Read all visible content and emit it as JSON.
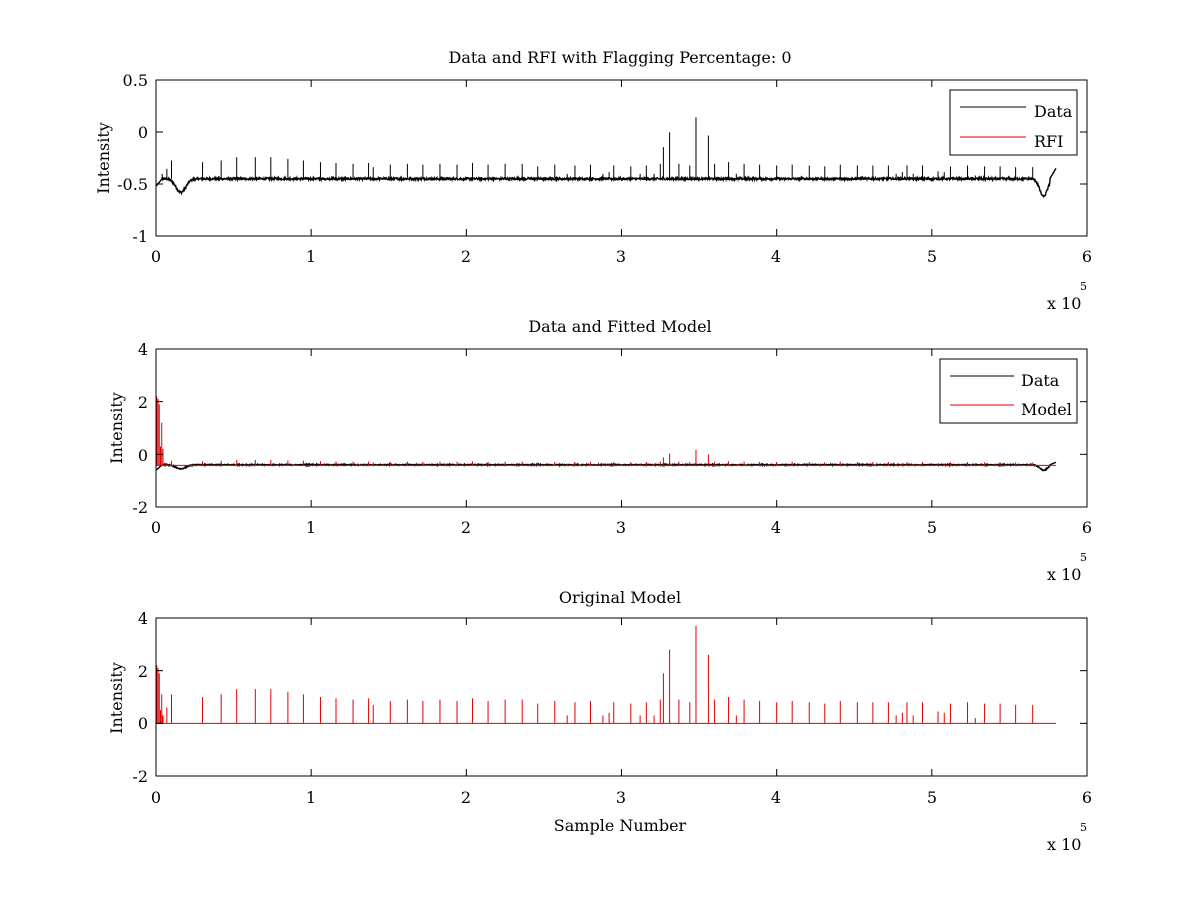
{
  "colors": {
    "data": "#000000",
    "model": "#e00000",
    "axes": "#000000",
    "background": "#ffffff"
  },
  "chart_data": [
    {
      "type": "line",
      "title": "Data and RFI with Flagging Percentage: 0",
      "xlabel": "",
      "ylabel": "Intensity",
      "xlim": [
        0,
        600000
      ],
      "ylim": [
        -1,
        0.5
      ],
      "x_ticks": [
        "0",
        "1",
        "2",
        "3",
        "4",
        "5",
        "6"
      ],
      "y_ticks": [
        "0.5",
        "0",
        "-0.5",
        "-1"
      ],
      "x_exponent": {
        "base": "x 10",
        "power": "5"
      },
      "legend": {
        "position": "top-right",
        "entries": [
          {
            "name": "Data",
            "color": "#000000"
          },
          {
            "name": "RFI",
            "color": "#e00000"
          }
        ]
      },
      "series": [
        {
          "name": "Data",
          "color": "#000000",
          "kind": "data",
          "baseline": -0.45,
          "noise": 0.01,
          "dips": [
            {
              "x": 16000,
              "depth": 0.13,
              "width": 4500
            },
            {
              "x": 572000,
              "depth": 0.17,
              "width": 3500
            }
          ],
          "spike_scale": 0.16,
          "start": -0.52,
          "end": -0.45
        },
        {
          "name": "RFI",
          "color": "#e00000",
          "kind": "none"
        }
      ]
    },
    {
      "type": "line",
      "title": "Data and Fitted Model",
      "xlabel": "",
      "ylabel": "Intensity",
      "xlim": [
        0,
        600000
      ],
      "ylim": [
        -2,
        4
      ],
      "x_ticks": [
        "0",
        "1",
        "2",
        "3",
        "4",
        "5",
        "6"
      ],
      "y_ticks": [
        "4",
        "2",
        "0",
        "-2"
      ],
      "x_exponent": {
        "base": "x 10",
        "power": "5"
      },
      "legend": {
        "position": "top-right",
        "entries": [
          {
            "name": "Data",
            "color": "#000000"
          },
          {
            "name": "Model",
            "color": "#e00000"
          }
        ]
      },
      "series": [
        {
          "name": "Data",
          "color": "#000000",
          "kind": "data",
          "baseline": -0.4,
          "noise": 0.02,
          "dips": [
            {
              "x": 16000,
              "depth": 0.15,
              "width": 4500
            },
            {
              "x": 572000,
              "depth": 0.2,
              "width": 3500
            }
          ],
          "spike_scale": 0.0,
          "start": -0.6,
          "end": -0.4
        },
        {
          "name": "Model",
          "color": "#e00000",
          "kind": "model",
          "baseline": -0.42,
          "spike_scale": 0.16,
          "head": [
            2.2,
            2.1,
            1.9,
            0.3,
            1.2,
            0.2
          ]
        }
      ]
    },
    {
      "type": "line",
      "title": "Original Model",
      "xlabel": "Sample Number",
      "ylabel": "Intensity",
      "xlim": [
        0,
        600000
      ],
      "ylim": [
        -2,
        4
      ],
      "x_ticks": [
        "0",
        "1",
        "2",
        "3",
        "4",
        "5",
        "6"
      ],
      "y_ticks": [
        "4",
        "2",
        "0",
        "-2"
      ],
      "x_exponent": {
        "base": "x 10",
        "power": "5"
      },
      "legend": null,
      "series": [
        {
          "name": "Model",
          "color": "#e00000",
          "kind": "model",
          "baseline": 0.0,
          "spike_scale": 1.0,
          "head": [
            2.2,
            2.1,
            1.9,
            0.5,
            1.1,
            0.3
          ]
        }
      ]
    }
  ],
  "spikes": [
    [
      4000,
      0.3
    ],
    [
      7000,
      0.6
    ],
    [
      10000,
      1.1
    ],
    [
      30000,
      1.0
    ],
    [
      42000,
      1.1
    ],
    [
      52000,
      1.3
    ],
    [
      64000,
      1.3
    ],
    [
      74000,
      1.3
    ],
    [
      85000,
      1.2
    ],
    [
      95000,
      1.1
    ],
    [
      106000,
      1.0
    ],
    [
      116000,
      0.95
    ],
    [
      127000,
      0.9
    ],
    [
      137000,
      0.95
    ],
    [
      140000,
      0.7
    ],
    [
      151000,
      0.85
    ],
    [
      162000,
      0.9
    ],
    [
      172000,
      0.85
    ],
    [
      183000,
      0.9
    ],
    [
      194000,
      0.85
    ],
    [
      204000,
      0.95
    ],
    [
      214000,
      0.85
    ],
    [
      225000,
      0.9
    ],
    [
      236000,
      0.9
    ],
    [
      246000,
      0.75
    ],
    [
      257000,
      0.85
    ],
    [
      265000,
      0.3
    ],
    [
      270000,
      0.8
    ],
    [
      280000,
      0.85
    ],
    [
      288000,
      0.3
    ],
    [
      292000,
      0.4
    ],
    [
      295000,
      0.8
    ],
    [
      306000,
      0.75
    ],
    [
      312000,
      0.3
    ],
    [
      316000,
      0.8
    ],
    [
      321000,
      0.3
    ],
    [
      325000,
      0.9
    ],
    [
      327000,
      1.9
    ],
    [
      331000,
      2.8
    ],
    [
      337000,
      0.9
    ],
    [
      344000,
      0.8
    ],
    [
      348000,
      3.7
    ],
    [
      356000,
      2.6
    ],
    [
      360000,
      0.9
    ],
    [
      369000,
      1.0
    ],
    [
      374000,
      0.3
    ],
    [
      379000,
      0.9
    ],
    [
      389000,
      0.85
    ],
    [
      400000,
      0.8
    ],
    [
      410000,
      0.85
    ],
    [
      421000,
      0.8
    ],
    [
      431000,
      0.75
    ],
    [
      441000,
      0.85
    ],
    [
      452000,
      0.8
    ],
    [
      462000,
      0.8
    ],
    [
      472000,
      0.8
    ],
    [
      477000,
      0.3
    ],
    [
      481000,
      0.4
    ],
    [
      484000,
      0.8
    ],
    [
      488000,
      0.3
    ],
    [
      494000,
      0.8
    ],
    [
      504000,
      0.45
    ],
    [
      508000,
      0.4
    ],
    [
      512000,
      0.75
    ],
    [
      523000,
      0.8
    ],
    [
      528000,
      0.2
    ],
    [
      534000,
      0.75
    ],
    [
      544000,
      0.75
    ],
    [
      554000,
      0.7
    ],
    [
      565000,
      0.7
    ]
  ]
}
